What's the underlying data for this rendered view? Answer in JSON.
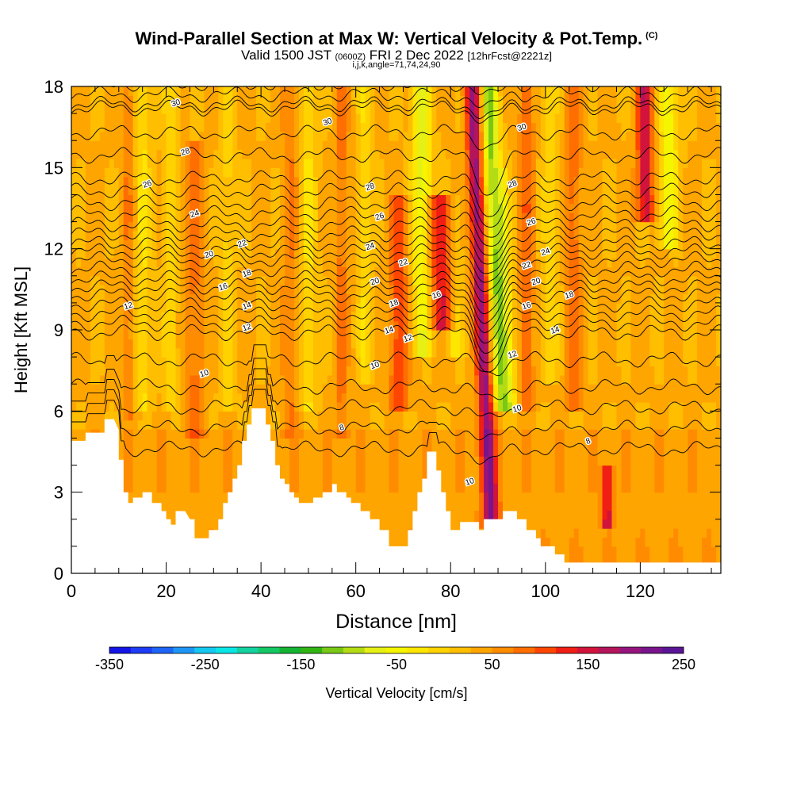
{
  "title": {
    "main": "Wind-Parallel Section at Max W: Vertical Velocity & Pot.Temp.",
    "copyright": "(C)",
    "valid_prefix": "Valid 1500 JST",
    "valid_z": "(0600Z)",
    "valid_date": "FRI 2 Dec 2022",
    "forecast": "[12hrFcst@2221z]",
    "indices": "i,j,k,angle=71,74,24,90"
  },
  "colors": {
    "terrain": "#ffffff",
    "contour": "#000000",
    "palette": [
      "#1414e6",
      "#1e3cf5",
      "#1e64f5",
      "#1e96f5",
      "#14c8f0",
      "#0ae6e6",
      "#14d2a0",
      "#14c864",
      "#14b432",
      "#32b414",
      "#78c814",
      "#b4dc14",
      "#e6f014",
      "#f5f500",
      "#ffe600",
      "#ffd200",
      "#ffbe00",
      "#ffa500",
      "#ff8c00",
      "#ff6e00",
      "#ff4600",
      "#f01e14",
      "#d2143c",
      "#b4145a",
      "#96147d",
      "#78148c",
      "#5a1496"
    ]
  },
  "chart_data": {
    "type": "heatmap",
    "xlabel": "Distance [nm]",
    "ylabel": "Height [Kft MSL]",
    "xlim": [
      0,
      137
    ],
    "ylim": [
      0,
      18
    ],
    "x_ticks": [
      "0",
      "20",
      "40",
      "60",
      "80",
      "100",
      "120"
    ],
    "y_ticks": [
      "0",
      "3",
      "6",
      "9",
      "12",
      "15",
      "18"
    ],
    "colorbar": {
      "label": "Vertical Velocity [cm/s]",
      "range": [
        -350,
        250
      ],
      "tick_labels": [
        "-350",
        "-250",
        "-150",
        "-50",
        "50",
        "150",
        "250"
      ]
    },
    "terrain": [
      [
        0,
        4.9
      ],
      [
        3,
        4.9
      ],
      [
        3,
        5.2
      ],
      [
        7,
        5.2
      ],
      [
        7,
        5.7
      ],
      [
        9,
        5.7
      ],
      [
        10,
        5.3
      ],
      [
        10,
        4.2
      ],
      [
        11,
        4.2
      ],
      [
        11,
        3.0
      ],
      [
        12,
        3.0
      ],
      [
        12,
        2.6
      ],
      [
        13,
        2.6
      ],
      [
        13,
        2.8
      ],
      [
        15,
        2.8
      ],
      [
        15,
        3.0
      ],
      [
        17,
        3.0
      ],
      [
        17,
        2.6
      ],
      [
        19,
        2.6
      ],
      [
        19,
        2.3
      ],
      [
        20,
        2.3
      ],
      [
        20,
        2.0
      ],
      [
        21,
        2.0
      ],
      [
        21,
        1.8
      ],
      [
        22,
        1.8
      ],
      [
        22,
        2.3
      ],
      [
        24,
        2.3
      ],
      [
        25,
        2.0
      ],
      [
        26,
        2.0
      ],
      [
        26,
        1.3
      ],
      [
        29,
        1.3
      ],
      [
        29,
        1.6
      ],
      [
        31,
        1.6
      ],
      [
        31,
        2.0
      ],
      [
        32,
        2.0
      ],
      [
        32,
        2.6
      ],
      [
        33,
        2.6
      ],
      [
        33,
        3.0
      ],
      [
        34,
        3.0
      ],
      [
        34,
        3.5
      ],
      [
        35,
        3.5
      ],
      [
        35,
        4.0
      ],
      [
        36,
        4.0
      ],
      [
        36,
        4.9
      ],
      [
        37,
        4.9
      ],
      [
        37,
        5.5
      ],
      [
        38,
        5.5
      ],
      [
        38,
        6.1
      ],
      [
        41,
        6.1
      ],
      [
        41,
        5.5
      ],
      [
        42,
        5.5
      ],
      [
        42,
        4.9
      ],
      [
        43,
        4.9
      ],
      [
        43,
        4.0
      ],
      [
        44,
        4.0
      ],
      [
        44,
        3.5
      ],
      [
        45,
        3.5
      ],
      [
        45,
        3.3
      ],
      [
        46,
        3.3
      ],
      [
        46,
        3.0
      ],
      [
        47,
        3.0
      ],
      [
        47,
        2.8
      ],
      [
        48,
        2.8
      ],
      [
        48,
        2.6
      ],
      [
        51,
        2.6
      ],
      [
        51,
        2.8
      ],
      [
        53,
        2.8
      ],
      [
        53,
        3.0
      ],
      [
        55,
        3.0
      ],
      [
        55,
        3.3
      ],
      [
        56,
        3.3
      ],
      [
        56,
        3.0
      ],
      [
        58,
        3.0
      ],
      [
        58,
        2.8
      ],
      [
        59,
        2.8
      ],
      [
        59,
        2.6
      ],
      [
        61,
        2.6
      ],
      [
        61,
        2.3
      ],
      [
        63,
        2.3
      ],
      [
        63,
        2.0
      ],
      [
        65,
        2.0
      ],
      [
        65,
        1.6
      ],
      [
        67,
        1.6
      ],
      [
        67,
        1.0
      ],
      [
        71,
        1.0
      ],
      [
        71,
        1.6
      ],
      [
        72,
        1.6
      ],
      [
        72,
        2.3
      ],
      [
        73,
        2.3
      ],
      [
        73,
        3.0
      ],
      [
        74,
        3.0
      ],
      [
        74,
        3.5
      ],
      [
        75,
        3.5
      ],
      [
        75,
        4.5
      ],
      [
        77,
        4.5
      ],
      [
        77,
        3.8
      ],
      [
        78,
        3.8
      ],
      [
        78,
        3.0
      ],
      [
        79,
        3.0
      ],
      [
        79,
        2.3
      ],
      [
        80,
        2.3
      ],
      [
        80,
        1.6
      ],
      [
        82,
        1.6
      ],
      [
        82,
        1.9
      ],
      [
        86,
        1.9
      ],
      [
        86,
        1.6
      ],
      [
        87,
        1.6
      ],
      [
        87,
        2.0
      ],
      [
        91,
        2.0
      ],
      [
        91,
        2.3
      ],
      [
        94,
        2.3
      ],
      [
        94,
        2.0
      ],
      [
        96,
        2.0
      ],
      [
        96,
        1.6
      ],
      [
        98,
        1.6
      ],
      [
        98,
        1.3
      ],
      [
        99,
        1.3
      ],
      [
        99,
        1.0
      ],
      [
        102,
        1.0
      ],
      [
        102,
        0.7
      ],
      [
        104,
        0.7
      ],
      [
        104,
        0.4
      ],
      [
        137,
        0.4
      ]
    ],
    "updraft_columns": [
      {
        "x": 12,
        "w": 1.5,
        "v": 40,
        "y0": 5.6,
        "y1": 18
      },
      {
        "x": 15,
        "w": 1.6,
        "v": -50,
        "y0": 6,
        "y1": 18
      },
      {
        "x": 21,
        "w": 1.5,
        "v": -40,
        "y0": 6,
        "y1": 18
      },
      {
        "x": 26,
        "w": 2.0,
        "v": 50,
        "y0": 5,
        "y1": 16
      },
      {
        "x": 33,
        "w": 1.5,
        "v": -35,
        "y0": 6,
        "y1": 18
      },
      {
        "x": 46,
        "w": 1.5,
        "v": 45,
        "y0": 5,
        "y1": 18
      },
      {
        "x": 50,
        "w": 1.5,
        "v": -50,
        "y0": 6,
        "y1": 18
      },
      {
        "x": 57,
        "w": 1.4,
        "v": 50,
        "y0": 5,
        "y1": 18
      },
      {
        "x": 62,
        "w": 1.5,
        "v": -45,
        "y0": 7,
        "y1": 18
      },
      {
        "x": 69,
        "w": 2.0,
        "v": 80,
        "y0": 6,
        "y1": 14
      },
      {
        "x": 74,
        "w": 2.0,
        "v": -100,
        "y0": 8,
        "y1": 18
      },
      {
        "x": 78,
        "w": 3.0,
        "v": 110,
        "y0": 9,
        "y1": 14
      },
      {
        "x": 81,
        "w": 1.6,
        "v": -50,
        "y0": 8,
        "y1": 14
      },
      {
        "x": 86.5,
        "w": 1.6,
        "v": 170,
        "y0": 1.8,
        "y1": 18
      },
      {
        "x": 90,
        "w": 1.8,
        "v": -140,
        "y0": 6,
        "y1": 18
      },
      {
        "x": 92,
        "w": 1.2,
        "v": -50,
        "y0": 6,
        "y1": 15
      },
      {
        "x": 96,
        "w": 1.5,
        "v": 60,
        "y0": 6,
        "y1": 18
      },
      {
        "x": 101,
        "w": 1.6,
        "v": -40,
        "y0": 7,
        "y1": 18
      },
      {
        "x": 106,
        "w": 1.6,
        "v": 55,
        "y0": 6,
        "y1": 18
      },
      {
        "x": 113,
        "w": 1.0,
        "v": 120,
        "y0": 1.8,
        "y1": 4
      },
      {
        "x": 121,
        "w": 1.8,
        "v": 130,
        "y0": 13,
        "y1": 18
      },
      {
        "x": 126,
        "w": 2.0,
        "v": -80,
        "y0": 12,
        "y1": 18
      }
    ],
    "isentropes": [
      {
        "label": "8",
        "base_y": 4.6
      },
      {
        "label": "10",
        "base_y": 6.9
      },
      {
        "label": "12",
        "base_y": 8.9
      },
      {
        "label": "14",
        "base_y": 9.6
      },
      {
        "label": "16",
        "base_y": 10.3
      },
      {
        "label": "18",
        "base_y": 10.9
      },
      {
        "label": "20",
        "base_y": 11.6
      },
      {
        "label": "22",
        "base_y": 12.2
      },
      {
        "label": "24",
        "base_y": 12.9
      },
      {
        "label": "26",
        "base_y": 13.7
      },
      {
        "label": "28",
        "base_y": 14.6
      },
      {
        "label": "30",
        "base_y": 16.3
      }
    ],
    "contour_labels": [
      {
        "t": "30",
        "x": 22,
        "y": 17.4
      },
      {
        "t": "28",
        "x": 24,
        "y": 15.6
      },
      {
        "t": "26",
        "x": 16,
        "y": 14.4
      },
      {
        "t": "24",
        "x": 26,
        "y": 13.3
      },
      {
        "t": "22",
        "x": 36,
        "y": 12.2
      },
      {
        "t": "20",
        "x": 29,
        "y": 11.8
      },
      {
        "t": "18",
        "x": 37,
        "y": 11.1
      },
      {
        "t": "16",
        "x": 32,
        "y": 10.6
      },
      {
        "t": "14",
        "x": 37,
        "y": 9.9
      },
      {
        "t": "12",
        "x": 12,
        "y": 9.9
      },
      {
        "t": "12",
        "x": 37,
        "y": 9.1
      },
      {
        "t": "10",
        "x": 28,
        "y": 7.4
      },
      {
        "t": "30",
        "x": 54,
        "y": 16.7
      },
      {
        "t": "28",
        "x": 63,
        "y": 14.3
      },
      {
        "t": "26",
        "x": 65,
        "y": 13.2
      },
      {
        "t": "24",
        "x": 63,
        "y": 12.1
      },
      {
        "t": "20",
        "x": 64,
        "y": 10.8
      },
      {
        "t": "22",
        "x": 70,
        "y": 11.5
      },
      {
        "t": "18",
        "x": 68,
        "y": 10.0
      },
      {
        "t": "16",
        "x": 77,
        "y": 10.3
      },
      {
        "t": "14",
        "x": 67,
        "y": 9.0
      },
      {
        "t": "12",
        "x": 71,
        "y": 8.7
      },
      {
        "t": "10",
        "x": 64,
        "y": 7.7
      },
      {
        "t": "8",
        "x": 57,
        "y": 5.4
      },
      {
        "t": "10",
        "x": 84,
        "y": 3.4
      },
      {
        "t": "30",
        "x": 95,
        "y": 16.5
      },
      {
        "t": "28",
        "x": 93,
        "y": 14.4
      },
      {
        "t": "26",
        "x": 97,
        "y": 13.0
      },
      {
        "t": "24",
        "x": 100,
        "y": 11.9
      },
      {
        "t": "22",
        "x": 96,
        "y": 11.4
      },
      {
        "t": "20",
        "x": 98,
        "y": 10.8
      },
      {
        "t": "18",
        "x": 105,
        "y": 10.3
      },
      {
        "t": "16",
        "x": 96,
        "y": 9.9
      },
      {
        "t": "14",
        "x": 102,
        "y": 9.0
      },
      {
        "t": "12",
        "x": 93,
        "y": 8.1
      },
      {
        "t": "10",
        "x": 94,
        "y": 6.1
      },
      {
        "t": "8",
        "x": 109,
        "y": 4.9
      }
    ]
  }
}
